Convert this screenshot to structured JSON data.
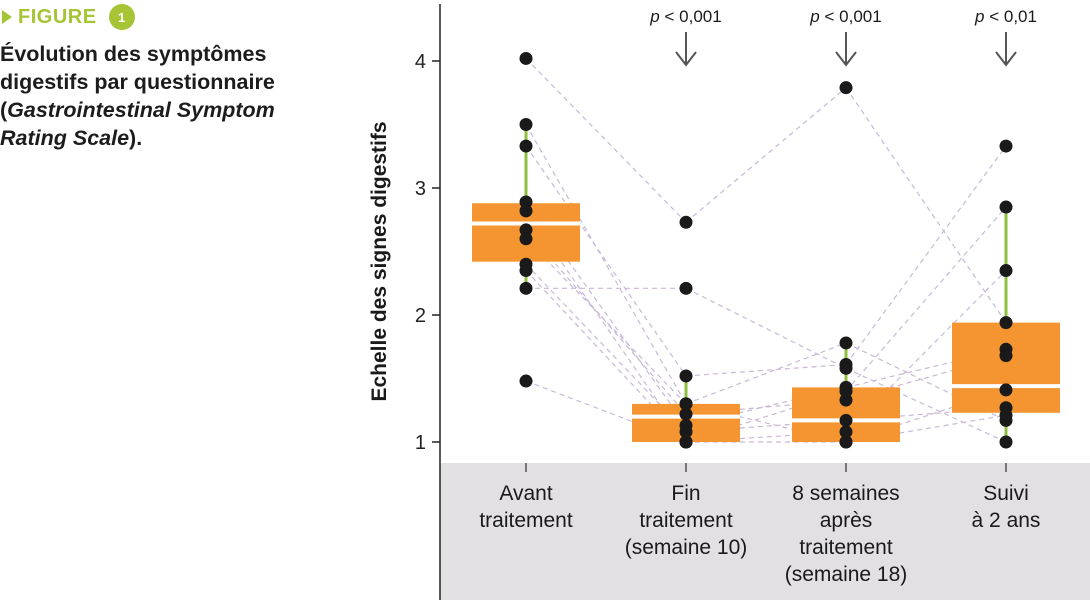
{
  "figure": {
    "label": "FIGURE",
    "number": "1",
    "accent_color": "#a5c534",
    "caption_start": "Évolution des symptômes digestifs par questionnaire (",
    "caption_italic": "Gastrointestinal Symptom Rating Scale",
    "caption_end": ")."
  },
  "chart_data": {
    "type": "box",
    "ylabel": "Echelle des signes digestifs",
    "xlabel": "",
    "ylim": [
      0.9,
      4.4
    ],
    "yticks": [
      1,
      2,
      3,
      4
    ],
    "grid": false,
    "box_color": "#f49531",
    "whisker_color": "#8fbf3f",
    "point_color": "#1a1a1a",
    "line_color": "#c9b8d6",
    "categories": [
      [
        "Avant",
        "traitement"
      ],
      [
        "Fin",
        "traitement",
        "(semaine 10)"
      ],
      [
        "8 semaines",
        "après",
        "traitement",
        "(semaine 18)"
      ],
      [
        "Suivi",
        "à 2 ans"
      ]
    ],
    "boxes": [
      {
        "q1": 2.42,
        "median": 2.72,
        "q3": 2.88,
        "whisker_low": 2.21,
        "whisker_high": 3.5
      },
      {
        "q1": 1.0,
        "median": 1.2,
        "q3": 1.3,
        "whisker_low": 1.0,
        "whisker_high": 1.52
      },
      {
        "q1": 1.0,
        "median": 1.17,
        "q3": 1.43,
        "whisker_low": 1.0,
        "whisker_high": 1.78
      },
      {
        "q1": 1.23,
        "median": 1.44,
        "q3": 1.94,
        "whisker_low": 1.0,
        "whisker_high": 2.85
      }
    ],
    "subjects": [
      [
        4.02,
        2.73,
        3.79,
        1.94
      ],
      [
        3.5,
        1.3,
        1.78,
        1.17
      ],
      [
        3.33,
        1.52,
        1.61,
        3.33
      ],
      [
        2.89,
        1.13,
        1.43,
        1.73
      ],
      [
        2.82,
        1.0,
        1.4,
        2.85
      ],
      [
        2.67,
        1.22,
        1.33,
        1.68
      ],
      [
        2.6,
        1.3,
        1.0,
        1.41
      ],
      [
        2.4,
        1.08,
        1.17,
        1.27
      ],
      [
        2.35,
        1.0,
        1.08,
        2.35
      ],
      [
        2.21,
        2.21,
        1.58,
        1.0
      ],
      [
        1.48,
        1.0,
        1.0,
        1.21
      ]
    ],
    "annotations": [
      {
        "category_index": 1,
        "text": "p < 0,001"
      },
      {
        "category_index": 2,
        "text": "p < 0,001"
      },
      {
        "category_index": 3,
        "text": "p < 0,01"
      }
    ]
  }
}
